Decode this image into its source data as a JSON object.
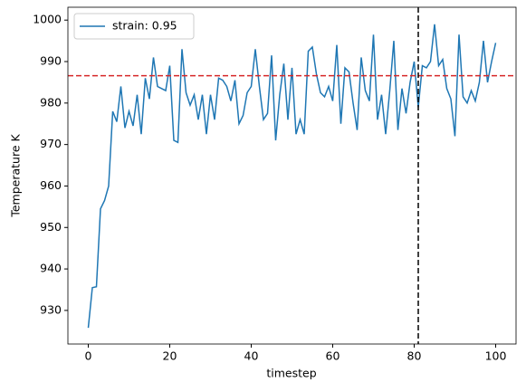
{
  "chart_data": {
    "type": "line",
    "xlabel": "timestep",
    "ylabel": "Temperature K",
    "x": [
      0,
      1,
      2,
      3,
      4,
      5,
      6,
      7,
      8,
      9,
      10,
      11,
      12,
      13,
      14,
      15,
      16,
      17,
      18,
      19,
      20,
      21,
      22,
      23,
      24,
      25,
      26,
      27,
      28,
      29,
      30,
      31,
      32,
      33,
      34,
      35,
      36,
      37,
      38,
      39,
      40,
      41,
      42,
      43,
      44,
      45,
      46,
      47,
      48,
      49,
      50,
      51,
      52,
      53,
      54,
      55,
      56,
      57,
      58,
      59,
      60,
      61,
      62,
      63,
      64,
      65,
      66,
      67,
      68,
      69,
      70,
      71,
      72,
      73,
      74,
      75,
      76,
      77,
      78,
      79,
      80,
      81,
      82,
      83,
      84,
      85,
      86,
      87,
      88,
      89,
      90,
      91,
      92,
      93,
      94,
      95,
      96,
      97,
      98,
      99,
      100
    ],
    "series": [
      {
        "name": "strain: 0.95",
        "color": "#1f77b4",
        "values": [
          925.8,
          935.5,
          935.7,
          954.5,
          956.5,
          960,
          978,
          975.5,
          984,
          974,
          978,
          974.5,
          982,
          972.5,
          986,
          981,
          991,
          984,
          983.5,
          983,
          989,
          971,
          970.5,
          993,
          982.5,
          979.5,
          982,
          976,
          982,
          972.5,
          982,
          976,
          986,
          985.5,
          984,
          980.5,
          985.5,
          975,
          977,
          982.5,
          984,
          993,
          984,
          976,
          977.5,
          991.5,
          971,
          982,
          989.5,
          976,
          988.5,
          972.5,
          976,
          972.5,
          992.5,
          993.5,
          987,
          982.5,
          981.5,
          984,
          980.5,
          994,
          975,
          988.5,
          987.5,
          980,
          973.5,
          991,
          983,
          980.5,
          996.5,
          976,
          982,
          972.5,
          983,
          995,
          973.5,
          983.5,
          977.5,
          985,
          990,
          979,
          989,
          988.5,
          990,
          999,
          989,
          990.5,
          983.5,
          981,
          972,
          996.5,
          981.5,
          980,
          983,
          980.5,
          985,
          995,
          985,
          990,
          994.5
        ]
      }
    ],
    "hline": 986.6,
    "hline_color": "#d62728",
    "vline": 81,
    "vline_color": "#000000",
    "xlim": [
      -5,
      105
    ],
    "xticks": [
      0,
      20,
      40,
      60,
      80,
      100
    ],
    "ylim": [
      921.9,
      1003.1
    ],
    "yticks": [
      930,
      940,
      950,
      960,
      970,
      980,
      990,
      1000
    ],
    "legend": "upper left"
  }
}
